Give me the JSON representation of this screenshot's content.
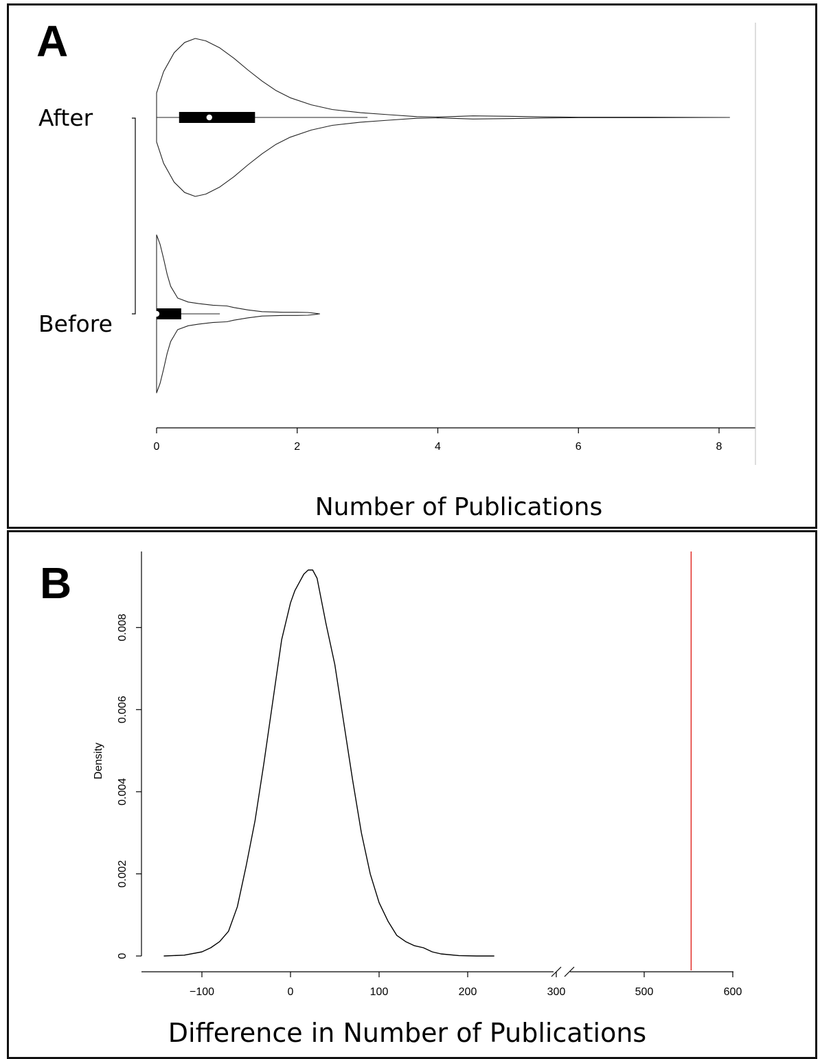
{
  "panels": {
    "a": {
      "letter": "A"
    },
    "b": {
      "letter": "B"
    }
  },
  "chart_data": [
    {
      "type": "violin",
      "panel": "A",
      "xlabel": "Number of Publications",
      "ylabel": "",
      "xlim": [
        0,
        8.5
      ],
      "x_ticks": [
        0,
        2,
        4,
        6,
        8
      ],
      "groups": [
        {
          "name": "After",
          "min": 0,
          "q1": 0.32,
          "median": 0.75,
          "q3": 1.4,
          "whisker_high": 3.0,
          "max": 8.15,
          "density": [
            [
              0,
              0.31
            ],
            [
              0.1,
              0.58
            ],
            [
              0.25,
              0.82
            ],
            [
              0.4,
              0.95
            ],
            [
              0.55,
              1.0
            ],
            [
              0.7,
              0.97
            ],
            [
              0.9,
              0.88
            ],
            [
              1.1,
              0.75
            ],
            [
              1.3,
              0.6
            ],
            [
              1.5,
              0.46
            ],
            [
              1.7,
              0.34
            ],
            [
              1.9,
              0.25
            ],
            [
              2.2,
              0.16
            ],
            [
              2.5,
              0.1
            ],
            [
              2.9,
              0.06
            ],
            [
              3.3,
              0.035
            ],
            [
              3.7,
              0.01
            ],
            [
              4.0,
              0.005
            ],
            [
              4.5,
              0.02
            ],
            [
              5.0,
              0.015
            ],
            [
              5.5,
              0.007
            ],
            [
              6.0,
              0.003
            ],
            [
              7.0,
              0.003
            ],
            [
              8.15,
              0.0
            ]
          ]
        },
        {
          "name": "Before",
          "min": 0,
          "q1": 0.0,
          "median": 0.0,
          "q3": 0.35,
          "whisker_high": 0.9,
          "max": 2.32,
          "density": [
            [
              0,
              1.0
            ],
            [
              0.05,
              0.88
            ],
            [
              0.1,
              0.7
            ],
            [
              0.15,
              0.5
            ],
            [
              0.2,
              0.35
            ],
            [
              0.3,
              0.2
            ],
            [
              0.45,
              0.15
            ],
            [
              0.6,
              0.13
            ],
            [
              0.8,
              0.11
            ],
            [
              1.0,
              0.1
            ],
            [
              1.1,
              0.08
            ],
            [
              1.3,
              0.05
            ],
            [
              1.5,
              0.028
            ],
            [
              1.8,
              0.02
            ],
            [
              2.0,
              0.02
            ],
            [
              2.15,
              0.017
            ],
            [
              2.25,
              0.008
            ],
            [
              2.32,
              0.0
            ]
          ]
        }
      ]
    },
    {
      "type": "line",
      "panel": "B",
      "xlabel": "Difference in Number of Publications",
      "ylabel": "Density",
      "x_ticks": [
        -100,
        0,
        100,
        200,
        300,
        500,
        600
      ],
      "axis_break": [
        300,
        480
      ],
      "ylim": [
        0,
        0.0097
      ],
      "y_ticks": [
        "0",
        "0.002",
        "0.004",
        "0.006",
        "0.008"
      ],
      "grid": false,
      "series": [
        {
          "color": "#000000",
          "x": [
            -143,
            -120,
            -100,
            -90,
            -80,
            -70,
            -60,
            -50,
            -40,
            -30,
            -20,
            -10,
            0,
            5,
            10,
            15,
            20,
            25,
            30,
            40,
            50,
            60,
            70,
            80,
            90,
            100,
            110,
            120,
            130,
            140,
            150,
            160,
            170,
            190,
            210,
            230
          ],
          "y": [
            0.0,
            2e-05,
            0.0001,
            0.0002,
            0.00035,
            0.0006,
            0.0012,
            0.0022,
            0.0033,
            0.0047,
            0.0062,
            0.0077,
            0.0086,
            0.0089,
            0.0091,
            0.0093,
            0.0094,
            0.0094,
            0.0092,
            0.0081,
            0.0071,
            0.0057,
            0.0043,
            0.003,
            0.002,
            0.0013,
            0.00085,
            0.0005,
            0.00035,
            0.00025,
            0.0002,
            0.0001,
            5e-05,
            1e-05,
            0.0,
            0.0
          ]
        }
      ],
      "reference_line": {
        "x": 553,
        "color": "#e0201b"
      }
    }
  ]
}
